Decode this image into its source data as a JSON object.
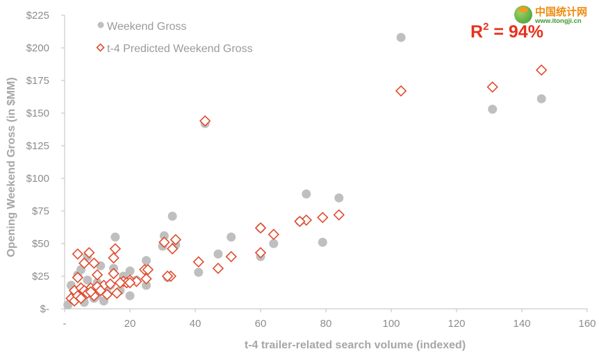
{
  "chart_data": {
    "type": "scatter",
    "xlabel": "t-4 trailer-related search volume (indexed)",
    "ylabel": "Opening Weekend Gross (in $MM)",
    "xlim": [
      0,
      160
    ],
    "ylim": [
      0,
      225
    ],
    "x_ticks": [
      "-",
      "20",
      "40",
      "60",
      "80",
      "100",
      "120",
      "140",
      "160"
    ],
    "y_ticks": [
      "$-",
      "$25",
      "$50",
      "$75",
      "$100",
      "$125",
      "$150",
      "$175",
      "$200",
      "$225"
    ],
    "grid": false,
    "legend_position": "top-left",
    "annotation": {
      "prefix": "R",
      "sup": "2",
      "suffix": " = 94%"
    },
    "series": [
      {
        "name": "Weekend Gross",
        "marker": "circle",
        "color": "#bfbfbf",
        "points": [
          [
            103,
            208
          ],
          [
            146,
            161
          ],
          [
            131,
            153
          ],
          [
            43,
            142
          ],
          [
            74,
            88
          ],
          [
            84,
            85
          ],
          [
            33,
            71
          ],
          [
            72,
            67
          ],
          [
            60,
            62
          ],
          [
            15.5,
            55
          ],
          [
            51,
            55
          ],
          [
            30.5,
            56
          ],
          [
            30,
            48
          ],
          [
            34,
            49
          ],
          [
            64,
            50
          ],
          [
            79,
            51
          ],
          [
            47,
            42
          ],
          [
            60,
            40
          ],
          [
            41,
            28
          ],
          [
            25,
            37
          ],
          [
            7,
            40
          ],
          [
            11,
            33
          ],
          [
            5,
            30
          ],
          [
            15,
            31
          ],
          [
            20,
            29
          ],
          [
            4,
            26
          ],
          [
            7,
            22
          ],
          [
            2,
            18
          ],
          [
            4,
            14
          ],
          [
            6,
            10
          ],
          [
            9,
            8
          ],
          [
            12,
            6
          ],
          [
            20,
            10
          ],
          [
            25,
            18
          ],
          [
            31.5,
            24
          ],
          [
            22,
            22
          ],
          [
            1,
            3
          ],
          [
            2,
            6
          ],
          [
            3,
            9
          ],
          [
            8,
            15
          ],
          [
            10,
            20
          ],
          [
            17,
            14
          ],
          [
            13,
            12
          ],
          [
            18,
            25
          ],
          [
            6,
            5
          ],
          [
            14,
            18
          ],
          [
            3,
            12
          ],
          [
            10,
            10
          ]
        ]
      },
      {
        "name": "t-4 Predicted Weekend Gross",
        "marker": "diamond",
        "color": "#e04a2c",
        "points": [
          [
            146,
            183
          ],
          [
            131,
            170
          ],
          [
            103,
            167
          ],
          [
            43,
            144
          ],
          [
            84,
            72
          ],
          [
            79,
            70
          ],
          [
            74,
            68
          ],
          [
            72,
            67
          ],
          [
            60,
            62
          ],
          [
            64,
            57
          ],
          [
            34,
            53
          ],
          [
            30.5,
            51
          ],
          [
            33,
            46
          ],
          [
            15.5,
            46
          ],
          [
            4,
            42
          ],
          [
            7.5,
            43
          ],
          [
            60,
            43
          ],
          [
            51,
            40
          ],
          [
            15,
            39
          ],
          [
            41,
            36
          ],
          [
            6,
            35
          ],
          [
            9,
            35
          ],
          [
            47,
            31
          ],
          [
            24.5,
            30
          ],
          [
            25.5,
            30
          ],
          [
            32.5,
            25
          ],
          [
            31.5,
            25
          ],
          [
            15,
            27
          ],
          [
            10,
            26
          ],
          [
            4,
            24
          ],
          [
            20,
            22
          ],
          [
            22,
            21
          ],
          [
            25,
            23
          ],
          [
            18,
            21
          ],
          [
            19,
            20
          ],
          [
            12,
            18
          ],
          [
            14,
            19
          ],
          [
            3,
            14
          ],
          [
            5,
            16
          ],
          [
            8,
            16
          ],
          [
            10,
            17
          ],
          [
            6,
            14
          ],
          [
            7,
            12
          ],
          [
            9,
            10
          ],
          [
            16,
            12
          ],
          [
            11,
            14
          ],
          [
            2,
            8
          ],
          [
            3,
            6
          ],
          [
            4,
            10
          ],
          [
            5,
            8
          ],
          [
            13,
            11
          ],
          [
            17,
            20
          ],
          [
            20,
            20
          ],
          [
            8,
            13
          ]
        ]
      }
    ]
  },
  "logo": {
    "name": "中国统计网",
    "url": "www.itongji.cn"
  }
}
